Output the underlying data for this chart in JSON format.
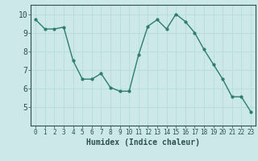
{
  "x": [
    0,
    1,
    2,
    3,
    4,
    5,
    6,
    7,
    8,
    9,
    10,
    11,
    12,
    13,
    14,
    15,
    16,
    17,
    18,
    19,
    20,
    21,
    22,
    23
  ],
  "y": [
    9.7,
    9.2,
    9.2,
    9.3,
    7.5,
    6.5,
    6.5,
    6.8,
    6.05,
    5.85,
    5.85,
    7.8,
    9.35,
    9.7,
    9.2,
    10.0,
    9.6,
    9.0,
    8.1,
    7.3,
    6.5,
    5.55,
    5.55,
    4.75
  ],
  "xlabel": "Humidex (Indice chaleur)",
  "ylim": [
    4.0,
    10.5
  ],
  "xlim": [
    -0.5,
    23.5
  ],
  "bg_color": "#cce8e8",
  "line_color": "#2e7d6e",
  "grid_color_white": "#b8dede",
  "grid_color_pink": "#e8c8c8",
  "tick_color": "#2e5050",
  "xlabel_fontsize": 7,
  "ytick_fontsize": 7,
  "xtick_fontsize": 5.5,
  "yticks": [
    5,
    6,
    7,
    8,
    9,
    10
  ],
  "xticks": [
    0,
    1,
    2,
    3,
    4,
    5,
    6,
    7,
    8,
    9,
    10,
    11,
    12,
    13,
    14,
    15,
    16,
    17,
    18,
    19,
    20,
    21,
    22,
    23
  ],
  "pink_xlines": [
    0,
    4,
    8,
    12,
    16,
    20
  ],
  "pink_ylines": [
    5,
    7,
    9
  ]
}
